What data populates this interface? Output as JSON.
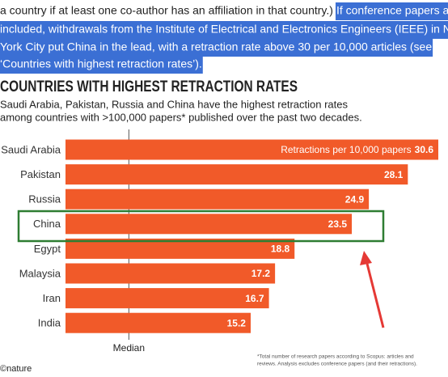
{
  "paragraph": {
    "plain": "a country if at least one co-author has an affiliation in that country.)",
    "highlighted": [
      "If conference papers are",
      "included, withdrawals from the Institute of Electrical and Electronics Engineers (IEEE) in New",
      "York City put China in the lead, with a retraction rate above 30 per 10,000 articles (see",
      "‘Countries with highest retraction rates’)."
    ]
  },
  "chart_data": {
    "type": "bar",
    "orientation": "horizontal",
    "title": "COUNTRIES WITH HIGHEST RETRACTION RATES",
    "subtitle": [
      "Saudi Arabia, Pakistan, Russia and China have the highest retraction rates",
      "among countries with >100,000 papers* published over the past two decades."
    ],
    "categories": [
      "Saudi Arabia",
      "Pakistan",
      "Russia",
      "China",
      "Egypt",
      "Malaysia",
      "Iran",
      "India"
    ],
    "values": [
      30.6,
      28.1,
      24.9,
      23.5,
      18.8,
      17.2,
      16.7,
      15.2
    ],
    "color": "#f15a29",
    "xlim": [
      0,
      30.6
    ],
    "annotation": "Retractions per 10,000 papers",
    "median": {
      "value": 5.2,
      "label": "Median"
    },
    "footnote": [
      "*Total number of research papers according to Scopus: articles and",
      "reviews. Analysis excludes conference papers (and their retractions)."
    ],
    "source": "©nature"
  }
}
